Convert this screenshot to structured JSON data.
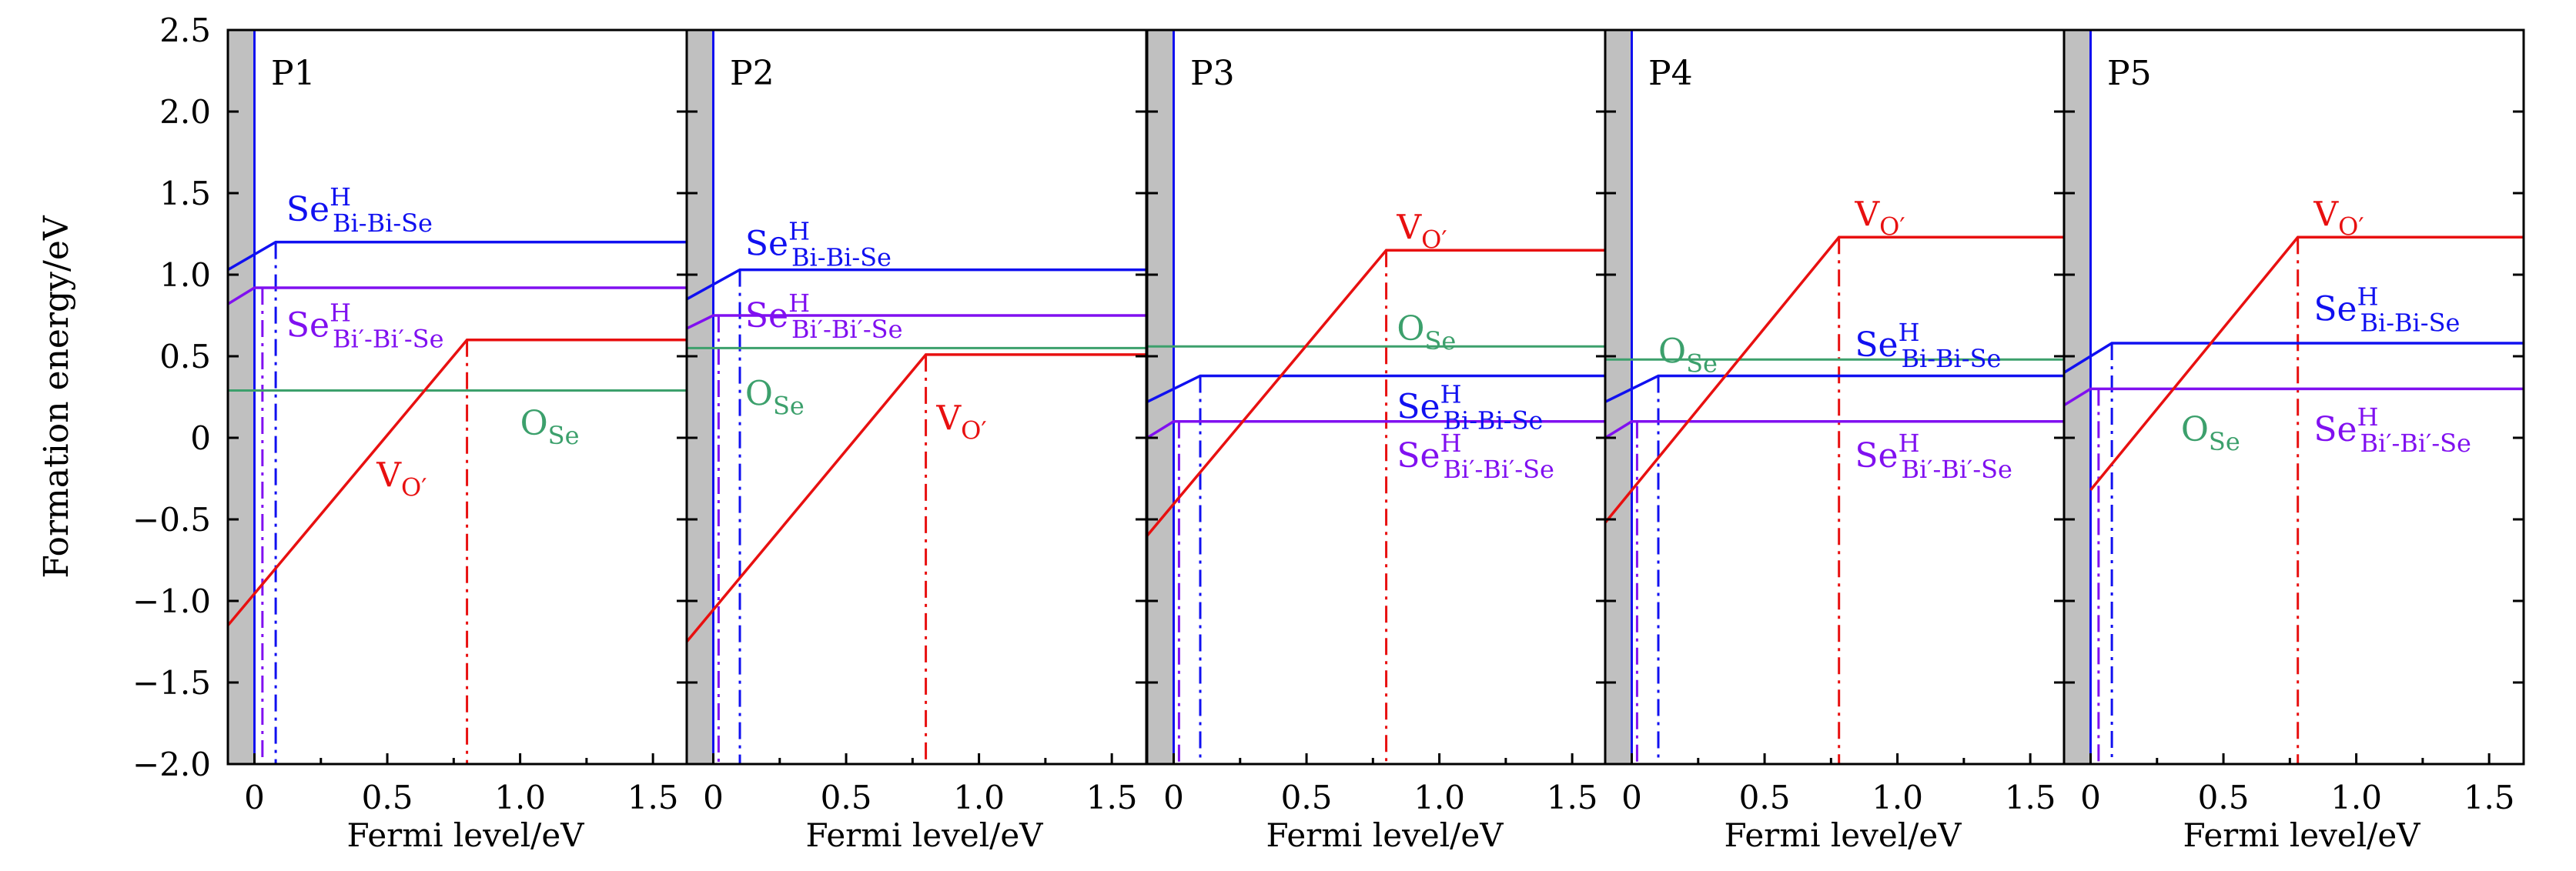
{
  "chart_data": {
    "type": "line",
    "ylabel": "Formation energy/eV",
    "xlabel": "Fermi level/eV",
    "xlim": [
      -0.1,
      1.63
    ],
    "ylim": [
      -2.0,
      2.5
    ],
    "xticks": [
      "0",
      "0.5",
      "1.0",
      "1.5"
    ],
    "xtick_values": [
      0,
      0.5,
      1.0,
      1.5
    ],
    "yticks": [
      "2.5",
      "2.0",
      "1.5",
      "1.0",
      "0.5",
      "0",
      "−0.5",
      "−1.0",
      "−1.5",
      "−2.0"
    ],
    "ytick_values": [
      2.5,
      2.0,
      1.5,
      1.0,
      0.5,
      0,
      -0.5,
      -1.0,
      -1.5,
      -2.0
    ],
    "shaded_region": [
      -0.1,
      0
    ],
    "colors": {
      "se_bi_bi_se": "#1010f0",
      "se_bip_bip_se": "#8010f0",
      "v_o": "#e81010",
      "o_se": "#3ca06c",
      "band": "#c0c0c0"
    },
    "labels": {
      "se_bi_bi_se": {
        "main": "Se",
        "sup": "H",
        "sub": "Bi-Bi-Se"
      },
      "se_bip_bip_se": {
        "main": "Se",
        "sup": "H",
        "sub": "Bi′-Bi′-Se"
      },
      "v_o": {
        "main": "V",
        "sub": "O′"
      },
      "o_se": {
        "main": "O",
        "sub": "Se"
      }
    },
    "panels": [
      {
        "title": "P1",
        "se_bi_bi_se": [
          [
            -0.1,
            1.03
          ],
          [
            0.08,
            1.2
          ],
          [
            1.63,
            1.2
          ]
        ],
        "se_bip_bip_se": [
          [
            -0.1,
            0.82
          ],
          [
            0.0,
            0.92
          ],
          [
            1.63,
            0.92
          ]
        ],
        "v_o": [
          [
            -0.1,
            -1.15
          ],
          [
            0.8,
            0.6
          ],
          [
            1.63,
            0.6
          ]
        ],
        "o_se": 0.29,
        "transition_levels": {
          "se_bi_bi_se": 0.08,
          "se_bip_bip_se": 0.03,
          "v_o": 0.8
        }
      },
      {
        "title": "P2",
        "se_bi_bi_se": [
          [
            -0.1,
            0.85
          ],
          [
            0.1,
            1.03
          ],
          [
            1.63,
            1.03
          ]
        ],
        "se_bip_bip_se": [
          [
            -0.1,
            0.67
          ],
          [
            0.0,
            0.75
          ],
          [
            1.63,
            0.75
          ]
        ],
        "v_o": [
          [
            -0.1,
            -1.25
          ],
          [
            0.8,
            0.51
          ],
          [
            1.63,
            0.51
          ]
        ],
        "o_se": 0.55,
        "transition_levels": {
          "se_bi_bi_se": 0.1,
          "se_bip_bip_se": 0.02,
          "v_o": 0.8
        }
      },
      {
        "title": "P3",
        "se_bi_bi_se": [
          [
            -0.1,
            0.22
          ],
          [
            0.1,
            0.38
          ],
          [
            1.63,
            0.38
          ]
        ],
        "se_bip_bip_se": [
          [
            -0.1,
            0.0
          ],
          [
            0.0,
            0.1
          ],
          [
            1.63,
            0.1
          ]
        ],
        "v_o": [
          [
            -0.1,
            -0.6
          ],
          [
            0.8,
            1.15
          ],
          [
            1.63,
            1.15
          ]
        ],
        "o_se": 0.56,
        "transition_levels": {
          "se_bi_bi_se": 0.1,
          "se_bip_bip_se": 0.02,
          "v_o": 0.8
        }
      },
      {
        "title": "P4",
        "se_bi_bi_se": [
          [
            -0.1,
            0.22
          ],
          [
            0.1,
            0.38
          ],
          [
            1.63,
            0.38
          ]
        ],
        "se_bip_bip_se": [
          [
            -0.1,
            0.0
          ],
          [
            0.0,
            0.1
          ],
          [
            1.63,
            0.1
          ]
        ],
        "v_o": [
          [
            -0.1,
            -0.52
          ],
          [
            0.78,
            1.23
          ],
          [
            1.63,
            1.23
          ]
        ],
        "o_se": 0.48,
        "transition_levels": {
          "se_bi_bi_se": 0.1,
          "se_bip_bip_se": 0.02,
          "v_o": 0.78
        }
      },
      {
        "title": "P5",
        "se_bi_bi_se": [
          [
            -0.1,
            0.4
          ],
          [
            0.08,
            0.58
          ],
          [
            1.63,
            0.58
          ]
        ],
        "se_bip_bip_se": [
          [
            -0.1,
            0.2
          ],
          [
            0.0,
            0.3
          ],
          [
            1.63,
            0.3
          ]
        ],
        "v_o": [
          [
            0.0,
            -0.32
          ],
          [
            0.78,
            1.23
          ],
          [
            1.63,
            1.23
          ]
        ],
        "o_se": null,
        "transition_levels": {
          "se_bi_bi_se": 0.08,
          "se_bip_bip_se": 0.03,
          "v_o": 0.78
        }
      }
    ]
  }
}
